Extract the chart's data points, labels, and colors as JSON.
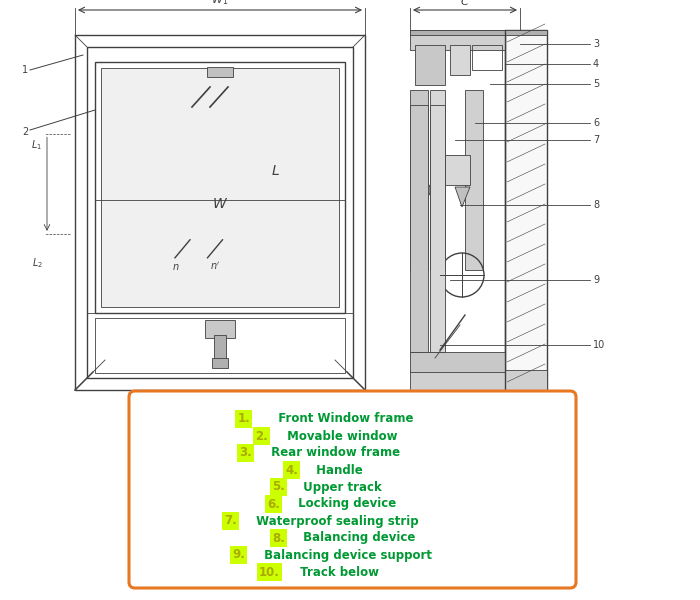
{
  "bg_color": "#ffffff",
  "num_highlight": "#ccff00",
  "num_color": "#aaaa00",
  "text_color": "#009933",
  "box_edge_color": "#e87722",
  "box_face_color": "#ffffff",
  "diagram_color": "#404040",
  "lw_main": 1.0,
  "lw_thin": 0.6,
  "lw_thick": 1.5,
  "legend_items": [
    {
      "num": "1.",
      "text": "  Front Window frame",
      "indent": 0
    },
    {
      "num": "2.",
      "text": " Movable window",
      "indent": 1
    },
    {
      "num": "3.",
      "text": " Rear window frame",
      "indent": 0
    },
    {
      "num": "4.",
      "text": " Handle",
      "indent": 3
    },
    {
      "num": "5.",
      "text": " Upper track",
      "indent": 2
    },
    {
      "num": "6.",
      "text": " Locking device",
      "indent": 2
    },
    {
      "num": "7.",
      "text": " Waterproof sealing strip",
      "indent": 0
    },
    {
      "num": "8.",
      "text": " Balancing device",
      "indent": 2
    },
    {
      "num": "9.",
      "text": " Balancing device support",
      "indent": 0
    },
    {
      "num": "10.",
      "text": " Track below",
      "indent": 2
    }
  ]
}
